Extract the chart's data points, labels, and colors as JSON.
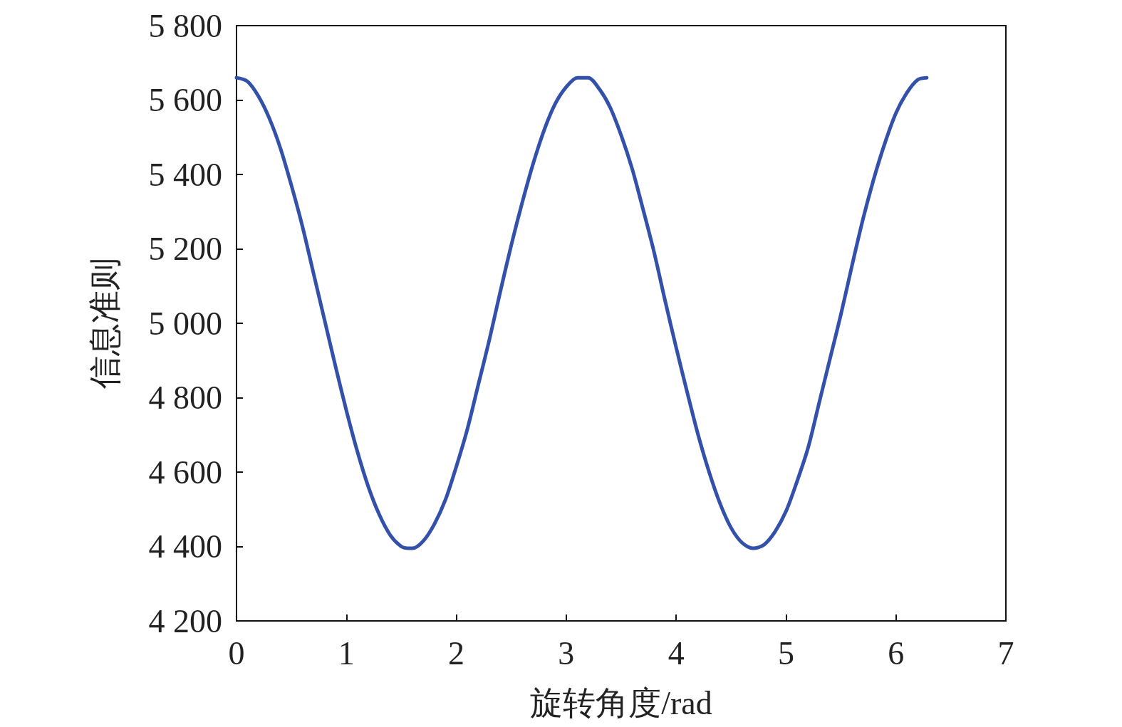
{
  "chart_data": {
    "type": "line",
    "xlabel": "旋转角度/rad",
    "ylabel": "信息准则",
    "x": [
      0,
      0.1,
      0.2,
      0.3,
      0.4,
      0.5,
      0.6,
      0.7,
      0.8,
      0.9,
      1.0,
      1.1,
      1.2,
      1.3,
      1.4,
      1.5,
      1.57,
      1.6,
      1.7,
      1.8,
      1.9,
      2.0,
      2.1,
      2.2,
      2.3,
      2.4,
      2.5,
      2.6,
      2.7,
      2.8,
      2.9,
      3.0,
      3.1,
      3.14,
      3.2,
      3.3,
      3.4,
      3.5,
      3.6,
      3.7,
      3.8,
      3.9,
      4.0,
      4.1,
      4.2,
      4.3,
      4.4,
      4.5,
      4.6,
      4.7,
      4.8,
      4.9,
      5.0,
      5.1,
      5.2,
      5.3,
      5.4,
      5.5,
      5.6,
      5.7,
      5.8,
      5.9,
      6.0,
      6.1,
      6.2,
      6.28
    ],
    "series": [
      {
        "color": "#3350aa",
        "values": [
          5660,
          5650,
          5610,
          5550,
          5470,
          5370,
          5260,
          5135,
          5010,
          4885,
          4765,
          4655,
          4560,
          4485,
          4430,
          4400,
          4395,
          4395,
          4415,
          4460,
          4525,
          4615,
          4715,
          4835,
          4955,
          5085,
          5210,
          5325,
          5430,
          5520,
          5590,
          5635,
          5660,
          5660,
          5660,
          5630,
          5580,
          5505,
          5415,
          5305,
          5190,
          5060,
          4935,
          4815,
          4700,
          4600,
          4515,
          4450,
          4410,
          4395,
          4405,
          4440,
          4495,
          4575,
          4665,
          4785,
          4905,
          5025,
          5155,
          5280,
          5390,
          5485,
          5565,
          5620,
          5655,
          5660
        ]
      }
    ],
    "xlim": [
      0,
      7
    ],
    "xticks": [
      0,
      1,
      2,
      3,
      4,
      5,
      6,
      7
    ],
    "ylim": [
      4200,
      5800
    ],
    "yticks": [
      {
        "value": 4200,
        "label": "4 200"
      },
      {
        "value": 4400,
        "label": "4 400"
      },
      {
        "value": 4600,
        "label": "4 600"
      },
      {
        "value": 4800,
        "label": "4 800"
      },
      {
        "value": 5000,
        "label": "5 000"
      },
      {
        "value": 5200,
        "label": "5 200"
      },
      {
        "value": 5400,
        "label": "5 400"
      },
      {
        "value": 5600,
        "label": "5 600"
      },
      {
        "value": 5800,
        "label": "5 800"
      }
    ],
    "grid": false,
    "marker": "none",
    "line_style": "solid"
  }
}
